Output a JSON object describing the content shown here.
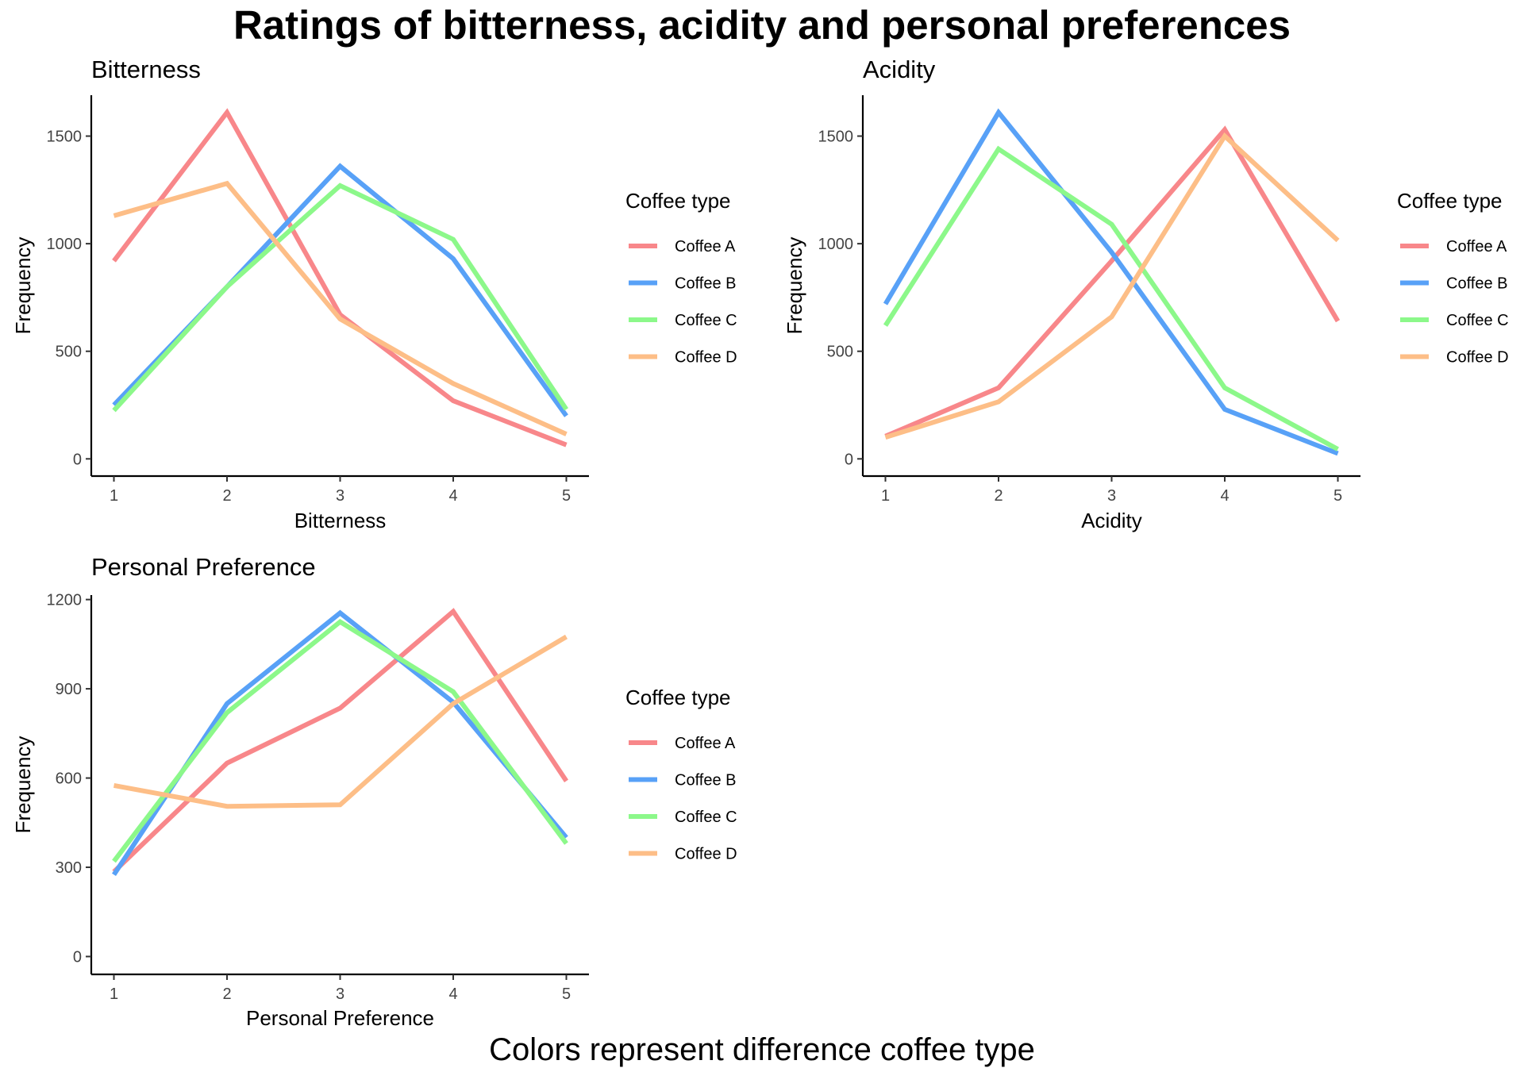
{
  "figure": {
    "title": "Ratings of bitterness, acidity and personal preferences",
    "caption": "Colors represent difference coffee type"
  },
  "colors": {
    "Coffee A": "#f8878a",
    "Coffee B": "#58a1f7",
    "Coffee C": "#8cf88a",
    "Coffee D": "#fdbe87"
  },
  "chart_data": [
    {
      "type": "line",
      "title": "Bitterness",
      "xlabel": "Bitterness",
      "ylabel": "Frequency",
      "x": [
        1,
        2,
        3,
        4,
        5
      ],
      "xlim": [
        0.8,
        5.2
      ],
      "ylim": [
        -80,
        1690
      ],
      "yticks": [
        0,
        500,
        1000,
        1500
      ],
      "grid": false,
      "legend": {
        "title": "Coffee type",
        "position": "right"
      },
      "series": [
        {
          "name": "Coffee A",
          "values": [
            920,
            1610,
            670,
            270,
            65
          ]
        },
        {
          "name": "Coffee B",
          "values": [
            250,
            800,
            1360,
            930,
            200
          ]
        },
        {
          "name": "Coffee C",
          "values": [
            225,
            800,
            1270,
            1020,
            230
          ]
        },
        {
          "name": "Coffee D",
          "values": [
            1130,
            1280,
            650,
            350,
            115
          ]
        }
      ]
    },
    {
      "type": "line",
      "title": "Acidity",
      "xlabel": "Acidity",
      "ylabel": "Frequency",
      "x": [
        1,
        2,
        3,
        4,
        5
      ],
      "xlim": [
        0.8,
        5.2
      ],
      "ylim": [
        -80,
        1690
      ],
      "yticks": [
        0,
        500,
        1000,
        1500
      ],
      "grid": false,
      "legend": {
        "title": "Coffee type",
        "position": "right"
      },
      "series": [
        {
          "name": "Coffee A",
          "values": [
            105,
            330,
            920,
            1530,
            640
          ]
        },
        {
          "name": "Coffee B",
          "values": [
            720,
            1610,
            960,
            230,
            25
          ]
        },
        {
          "name": "Coffee C",
          "values": [
            620,
            1440,
            1090,
            330,
            45
          ]
        },
        {
          "name": "Coffee D",
          "values": [
            100,
            265,
            660,
            1500,
            1015
          ]
        }
      ]
    },
    {
      "type": "line",
      "title": "Personal Preference",
      "xlabel": "Personal Preference",
      "ylabel": "Frequency",
      "x": [
        1,
        2,
        3,
        4,
        5
      ],
      "xlim": [
        0.8,
        5.2
      ],
      "ylim": [
        -60,
        1215
      ],
      "yticks": [
        0,
        300,
        600,
        900,
        1200
      ],
      "grid": false,
      "legend": {
        "title": "Coffee type",
        "position": "right"
      },
      "series": [
        {
          "name": "Coffee A",
          "values": [
            285,
            650,
            835,
            1160,
            590
          ]
        },
        {
          "name": "Coffee B",
          "values": [
            275,
            850,
            1155,
            855,
            400
          ]
        },
        {
          "name": "Coffee C",
          "values": [
            320,
            820,
            1125,
            890,
            380
          ]
        },
        {
          "name": "Coffee D",
          "values": [
            575,
            505,
            510,
            850,
            1075
          ]
        }
      ]
    }
  ]
}
